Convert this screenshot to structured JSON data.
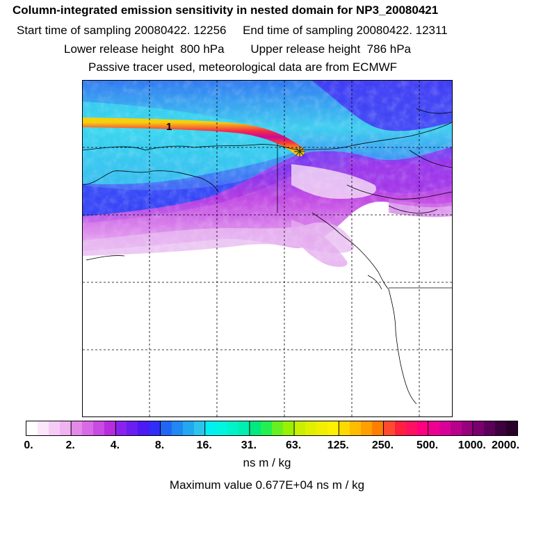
{
  "header": {
    "title": "Column-integrated emission sensitivity in nested domain for NP3_20080421",
    "line2": "Start time of sampling 20080422. 12256     End time of sampling 20080422. 12311",
    "line3": "Lower release height  800 hPa        Upper release height  786 hPa",
    "line4": "Passive tracer used, meteorological data are from ECMWF"
  },
  "map": {
    "trajectory_label": "1",
    "release_marker_icon": "asterisk-icon"
  },
  "colorbar": {
    "tick_labels": [
      "0.",
      "2.",
      "4.",
      "8.",
      "16.",
      "31.",
      "63.",
      "125.",
      "250.",
      "500.",
      "1000.",
      "2000."
    ],
    "colors": [
      "#ffffff",
      "#fbe6fb",
      "#f6ccf6",
      "#f0b2f0",
      "#e38ae9",
      "#d86ae6",
      "#c94ae3",
      "#b82cdf",
      "#8a22ef",
      "#6a1ef2",
      "#4b1af5",
      "#2e2ef8",
      "#2066f6",
      "#1f88f2",
      "#22a8f0",
      "#2cc4ee",
      "#00f0f0",
      "#00f5e0",
      "#00f2c8",
      "#00eeb0",
      "#00e880",
      "#22f050",
      "#66f020",
      "#99f000",
      "#c8f000",
      "#e0f000",
      "#f2ee00",
      "#fff000",
      "#ffd800",
      "#ffbb00",
      "#ff9f00",
      "#ff7e00",
      "#ff4a30",
      "#ff2040",
      "#ff1060",
      "#ff0080",
      "#ee0090",
      "#d80098",
      "#b8008c",
      "#98007e",
      "#7a0070",
      "#5a0058",
      "#3e003e",
      "#2a002a"
    ]
  },
  "units": "ns m / kg",
  "max_value": "Maximum value  0.677E+04 ns m / kg"
}
